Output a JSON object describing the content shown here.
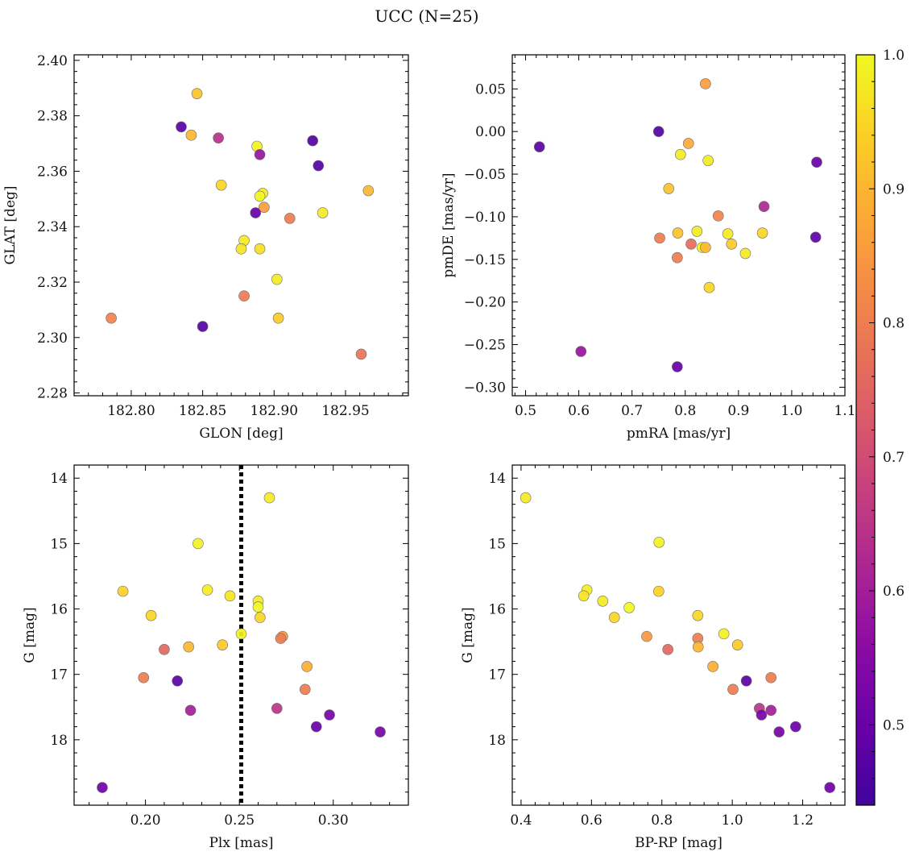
{
  "figure": {
    "title": "UCC (N=25)"
  },
  "chart_data": [
    {
      "type": "scatter",
      "name": "sky",
      "xlabel": "GLON [deg]",
      "ylabel": "GLAT [deg]",
      "xlim": [
        182.76,
        182.994
      ],
      "ylim": [
        2.279,
        2.402
      ],
      "xticks": [
        182.8,
        182.85,
        182.9,
        182.95
      ],
      "xtick_labels": [
        "182.80",
        "182.85",
        "182.90",
        "182.95"
      ],
      "yticks": [
        2.28,
        2.3,
        2.32,
        2.34,
        2.36,
        2.38,
        2.4
      ],
      "ytick_labels": [
        "2.28",
        "2.30",
        "2.32",
        "2.34",
        "2.36",
        "2.38",
        "2.40"
      ],
      "points": [
        {
          "x": 182.846,
          "y": 2.388,
          "c": 0.92
        },
        {
          "x": 182.835,
          "y": 2.376,
          "c": 0.48
        },
        {
          "x": 182.842,
          "y": 2.373,
          "c": 0.9
        },
        {
          "x": 182.861,
          "y": 2.372,
          "c": 0.64
        },
        {
          "x": 182.888,
          "y": 2.369,
          "c": 0.99
        },
        {
          "x": 182.927,
          "y": 2.371,
          "c": 0.47
        },
        {
          "x": 182.89,
          "y": 2.366,
          "c": 0.58
        },
        {
          "x": 182.931,
          "y": 2.362,
          "c": 0.47
        },
        {
          "x": 182.863,
          "y": 2.355,
          "c": 0.95
        },
        {
          "x": 182.892,
          "y": 2.352,
          "c": 0.98
        },
        {
          "x": 182.89,
          "y": 2.351,
          "c": 1.0
        },
        {
          "x": 182.966,
          "y": 2.353,
          "c": 0.9
        },
        {
          "x": 182.893,
          "y": 2.347,
          "c": 0.86
        },
        {
          "x": 182.887,
          "y": 2.345,
          "c": 0.5
        },
        {
          "x": 182.934,
          "y": 2.345,
          "c": 0.98
        },
        {
          "x": 182.911,
          "y": 2.343,
          "c": 0.8
        },
        {
          "x": 182.879,
          "y": 2.335,
          "c": 0.98
        },
        {
          "x": 182.877,
          "y": 2.332,
          "c": 0.97
        },
        {
          "x": 182.89,
          "y": 2.332,
          "c": 0.96
        },
        {
          "x": 182.902,
          "y": 2.321,
          "c": 0.98
        },
        {
          "x": 182.879,
          "y": 2.315,
          "c": 0.8
        },
        {
          "x": 182.786,
          "y": 2.307,
          "c": 0.81
        },
        {
          "x": 182.903,
          "y": 2.307,
          "c": 0.93
        },
        {
          "x": 182.85,
          "y": 2.304,
          "c": 0.47
        },
        {
          "x": 182.961,
          "y": 2.294,
          "c": 0.78
        }
      ]
    },
    {
      "type": "scatter",
      "name": "pm",
      "xlabel": "pmRA [mas/yr]",
      "ylabel": "pmDE [mas/yr]",
      "xlim": [
        0.475,
        1.1
      ],
      "ylim": [
        -0.31,
        0.09
      ],
      "xticks": [
        0.5,
        0.6,
        0.7,
        0.8,
        0.9,
        1.0,
        1.1
      ],
      "xtick_labels": [
        "0.5",
        "0.6",
        "0.7",
        "0.8",
        "0.9",
        "1.0",
        "1.1"
      ],
      "yticks": [
        -0.3,
        -0.25,
        -0.2,
        -0.15,
        -0.1,
        -0.05,
        0.0,
        0.05
      ],
      "ytick_labels": [
        "−0.30",
        "−0.25",
        "−0.20",
        "−0.15",
        "−0.10",
        "−0.05",
        "0.00",
        "0.05"
      ],
      "points": [
        {
          "x": 0.838,
          "y": 0.056,
          "c": 0.86
        },
        {
          "x": 0.526,
          "y": -0.018,
          "c": 0.48
        },
        {
          "x": 0.75,
          "y": 0.0,
          "c": 0.47
        },
        {
          "x": 0.806,
          "y": -0.014,
          "c": 0.88
        },
        {
          "x": 0.791,
          "y": -0.027,
          "c": 0.98
        },
        {
          "x": 0.843,
          "y": -0.034,
          "c": 0.98
        },
        {
          "x": 1.047,
          "y": -0.036,
          "c": 0.5
        },
        {
          "x": 0.769,
          "y": -0.067,
          "c": 0.92
        },
        {
          "x": 0.948,
          "y": -0.088,
          "c": 0.62
        },
        {
          "x": 0.862,
          "y": -0.099,
          "c": 0.81
        },
        {
          "x": 0.786,
          "y": -0.119,
          "c": 0.92
        },
        {
          "x": 0.822,
          "y": -0.117,
          "c": 0.98
        },
        {
          "x": 0.88,
          "y": -0.12,
          "c": 0.98
        },
        {
          "x": 0.945,
          "y": -0.119,
          "c": 0.95
        },
        {
          "x": 0.752,
          "y": -0.125,
          "c": 0.8
        },
        {
          "x": 1.045,
          "y": -0.124,
          "c": 0.49
        },
        {
          "x": 0.811,
          "y": -0.132,
          "c": 0.77
        },
        {
          "x": 0.887,
          "y": -0.132,
          "c": 0.93
        },
        {
          "x": 0.832,
          "y": -0.136,
          "c": 1.0
        },
        {
          "x": 0.838,
          "y": -0.136,
          "c": 0.9
        },
        {
          "x": 0.913,
          "y": -0.143,
          "c": 0.98
        },
        {
          "x": 0.785,
          "y": -0.148,
          "c": 0.8
        },
        {
          "x": 0.845,
          "y": -0.183,
          "c": 0.95
        },
        {
          "x": 0.604,
          "y": -0.258,
          "c": 0.58
        },
        {
          "x": 0.785,
          "y": -0.276,
          "c": 0.5
        }
      ]
    },
    {
      "type": "scatter",
      "name": "plx",
      "xlabel": "Plx [mas]",
      "ylabel": "G [mag]",
      "xlim": [
        0.162,
        0.34
      ],
      "ylim": [
        19.0,
        13.8
      ],
      "xticks": [
        0.2,
        0.25,
        0.3
      ],
      "xtick_labels": [
        "0.20",
        "0.25",
        "0.30"
      ],
      "yticks": [
        14,
        15,
        16,
        17,
        18
      ],
      "ytick_labels": [
        "14",
        "15",
        "16",
        "17",
        "18"
      ],
      "vline": 0.251,
      "points": [
        {
          "x": 0.266,
          "y": 14.3,
          "c": 0.98
        },
        {
          "x": 0.228,
          "y": 15.0,
          "c": 0.99
        },
        {
          "x": 0.188,
          "y": 15.73,
          "c": 0.94
        },
        {
          "x": 0.233,
          "y": 15.71,
          "c": 0.98
        },
        {
          "x": 0.245,
          "y": 15.8,
          "c": 0.97
        },
        {
          "x": 0.26,
          "y": 15.88,
          "c": 0.98
        },
        {
          "x": 0.26,
          "y": 15.97,
          "c": 1.0
        },
        {
          "x": 0.203,
          "y": 16.1,
          "c": 0.95
        },
        {
          "x": 0.261,
          "y": 16.13,
          "c": 0.95
        },
        {
          "x": 0.251,
          "y": 16.38,
          "c": 0.99
        },
        {
          "x": 0.273,
          "y": 16.42,
          "c": 0.85
        },
        {
          "x": 0.272,
          "y": 16.45,
          "c": 0.8
        },
        {
          "x": 0.241,
          "y": 16.55,
          "c": 0.93
        },
        {
          "x": 0.223,
          "y": 16.58,
          "c": 0.9
        },
        {
          "x": 0.21,
          "y": 16.62,
          "c": 0.76
        },
        {
          "x": 0.286,
          "y": 16.88,
          "c": 0.89
        },
        {
          "x": 0.199,
          "y": 17.05,
          "c": 0.8
        },
        {
          "x": 0.217,
          "y": 17.1,
          "c": 0.48
        },
        {
          "x": 0.285,
          "y": 17.23,
          "c": 0.8
        },
        {
          "x": 0.27,
          "y": 17.52,
          "c": 0.65
        },
        {
          "x": 0.224,
          "y": 17.55,
          "c": 0.6
        },
        {
          "x": 0.298,
          "y": 17.62,
          "c": 0.52
        },
        {
          "x": 0.291,
          "y": 17.8,
          "c": 0.5
        },
        {
          "x": 0.325,
          "y": 17.88,
          "c": 0.52
        },
        {
          "x": 0.177,
          "y": 18.73,
          "c": 0.51
        }
      ]
    },
    {
      "type": "scatter",
      "name": "cmd",
      "xlabel": "BP-RP [mag]",
      "ylabel": "G [mag]",
      "xlim": [
        0.375,
        1.32
      ],
      "ylim": [
        19.0,
        13.8
      ],
      "xticks": [
        0.4,
        0.6,
        0.8,
        1.0,
        1.2
      ],
      "xtick_labels": [
        "0.4",
        "0.6",
        "0.8",
        "1.0",
        "1.2"
      ],
      "yticks": [
        14,
        15,
        16,
        17,
        18
      ],
      "ytick_labels": [
        "14",
        "15",
        "16",
        "17",
        "18"
      ],
      "points": [
        {
          "x": 0.413,
          "y": 14.3,
          "c": 0.98
        },
        {
          "x": 0.792,
          "y": 14.98,
          "c": 0.99
        },
        {
          "x": 0.587,
          "y": 15.71,
          "c": 0.98
        },
        {
          "x": 0.791,
          "y": 15.73,
          "c": 0.94
        },
        {
          "x": 0.578,
          "y": 15.8,
          "c": 0.97
        },
        {
          "x": 0.632,
          "y": 15.88,
          "c": 0.98
        },
        {
          "x": 0.707,
          "y": 15.98,
          "c": 1.0
        },
        {
          "x": 0.902,
          "y": 16.1,
          "c": 0.95
        },
        {
          "x": 0.665,
          "y": 16.13,
          "c": 0.95
        },
        {
          "x": 0.976,
          "y": 16.38,
          "c": 0.99
        },
        {
          "x": 0.757,
          "y": 16.42,
          "c": 0.85
        },
        {
          "x": 0.902,
          "y": 16.45,
          "c": 0.8
        },
        {
          "x": 1.015,
          "y": 16.55,
          "c": 0.93
        },
        {
          "x": 0.903,
          "y": 16.58,
          "c": 0.9
        },
        {
          "x": 0.817,
          "y": 16.62,
          "c": 0.76
        },
        {
          "x": 0.945,
          "y": 16.88,
          "c": 0.89
        },
        {
          "x": 1.11,
          "y": 17.05,
          "c": 0.8
        },
        {
          "x": 1.04,
          "y": 17.1,
          "c": 0.48
        },
        {
          "x": 1.002,
          "y": 17.23,
          "c": 0.8
        },
        {
          "x": 1.077,
          "y": 17.52,
          "c": 0.65
        },
        {
          "x": 1.11,
          "y": 17.55,
          "c": 0.6
        },
        {
          "x": 1.083,
          "y": 17.62,
          "c": 0.52
        },
        {
          "x": 1.18,
          "y": 17.8,
          "c": 0.5
        },
        {
          "x": 1.133,
          "y": 17.88,
          "c": 0.52
        },
        {
          "x": 1.277,
          "y": 18.73,
          "c": 0.51
        }
      ]
    }
  ],
  "colorbar": {
    "colormap": "plasma",
    "range": [
      0.44,
      1.0
    ],
    "ticks": [
      0.5,
      0.6,
      0.7,
      0.8,
      0.9,
      1.0
    ],
    "tick_labels": [
      "0.5",
      "0.6",
      "0.7",
      "0.8",
      "0.9",
      "1.0"
    ]
  },
  "style": {
    "vline_color": "#000000",
    "marker_edge_color": "#6b6b6b"
  }
}
